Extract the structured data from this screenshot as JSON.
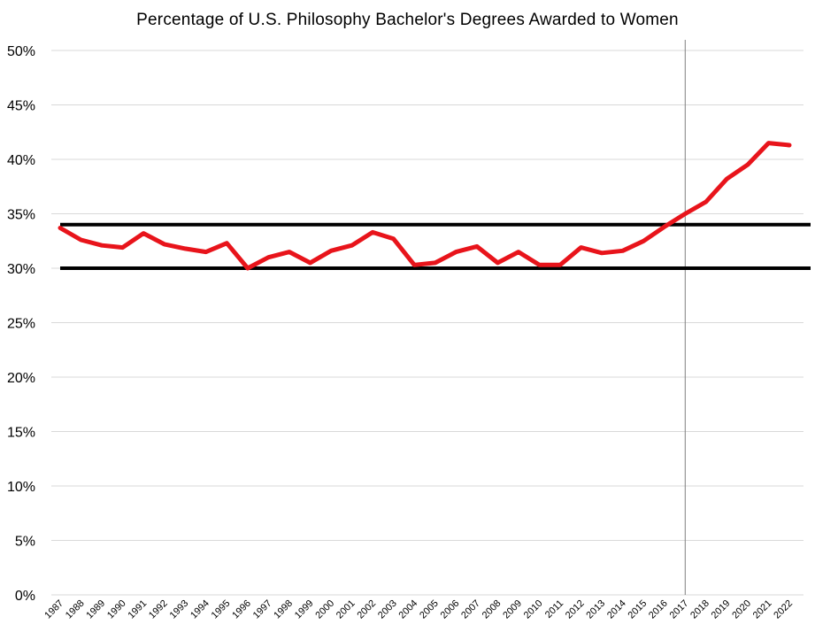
{
  "chart_data": {
    "type": "line",
    "title": "Percentage of U.S. Philosophy Bachelor's Degrees Awarded to Women",
    "xlabel": "",
    "ylabel": "",
    "x": [
      "1987",
      "1988",
      "1989",
      "1990",
      "1991",
      "1992",
      "1993",
      "1994",
      "1995",
      "1996",
      "1997",
      "1998",
      "1999",
      "2000",
      "2001",
      "2002",
      "2003",
      "2004",
      "2005",
      "2006",
      "2007",
      "2008",
      "2009",
      "2010",
      "2011",
      "2012",
      "2013",
      "2014",
      "2015",
      "2016",
      "2017",
      "2018",
      "2019",
      "2020",
      "2021",
      "2022"
    ],
    "series": [
      {
        "color": "#e8141b",
        "values": [
          33.7,
          32.6,
          32.1,
          31.9,
          33.2,
          32.2,
          31.8,
          31.5,
          32.3,
          30.0,
          31.0,
          31.5,
          30.5,
          31.6,
          32.1,
          33.3,
          32.7,
          30.3,
          30.5,
          31.5,
          32.0,
          30.5,
          31.5,
          30.3,
          30.3,
          31.9,
          31.4,
          31.6,
          32.5,
          33.8,
          35.0,
          36.1,
          38.2,
          39.5,
          41.5,
          41.3
        ]
      }
    ],
    "reference_lines": {
      "horizontal": [
        30,
        34
      ],
      "horizontal_color": "#000000",
      "vertical_at": "2017",
      "vertical_color": "#7f7f7f"
    },
    "ylim": [
      0,
      50
    ],
    "yticks": [
      0,
      5,
      10,
      15,
      20,
      25,
      30,
      35,
      40,
      45,
      50
    ],
    "ytick_labels": [
      "0%",
      "5%",
      "10%",
      "15%",
      "20%",
      "25%",
      "30%",
      "35%",
      "40%",
      "45%",
      "50%"
    ],
    "grid": true,
    "gridline_color": "#d9d9d9",
    "legend": "none"
  }
}
